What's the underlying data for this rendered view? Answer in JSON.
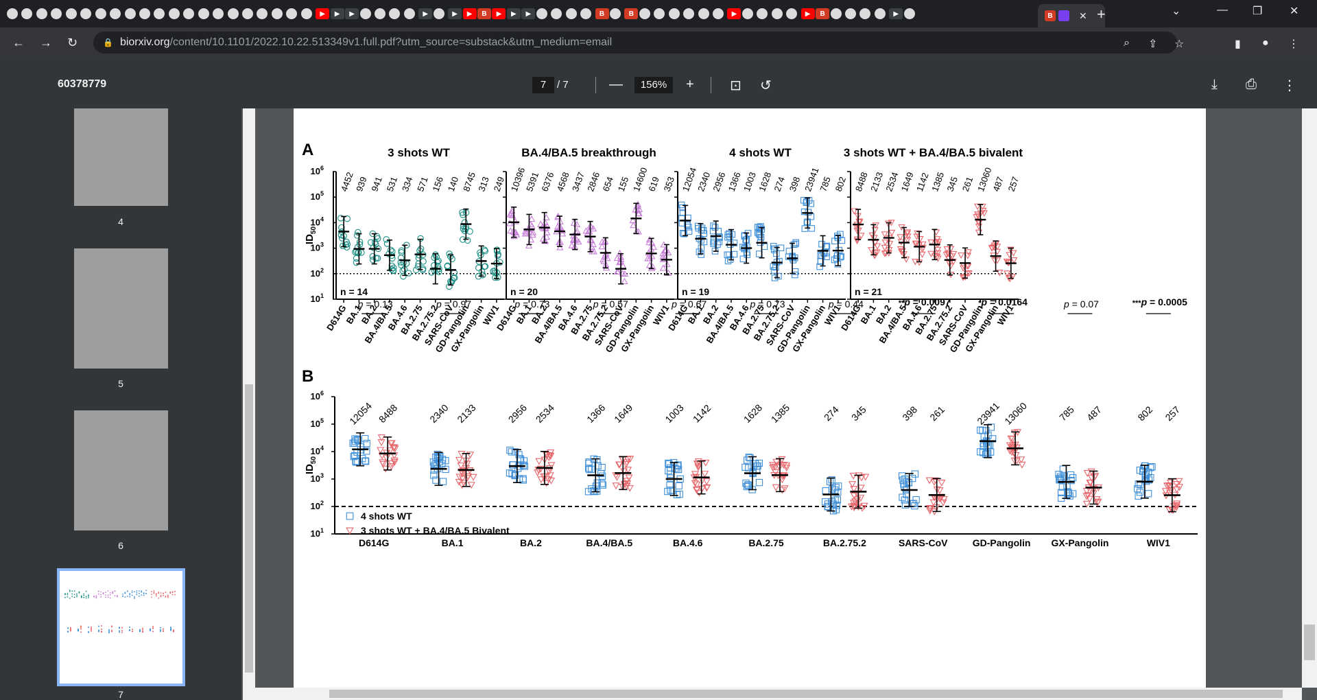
{
  "browser": {
    "active_tab_close": "✕",
    "new_tab": "+",
    "url_host": "biorxiv.org",
    "url_path": "/content/10.1101/2022.10.22.513349v1.full.pdf?utm_source=substack&utm_medium=email"
  },
  "pdf_toolbar": {
    "doc_title": "60378779",
    "current_page": "7",
    "total_pages": "/ 7",
    "zoom": "156%"
  },
  "sidebar": {
    "thumbnails": [
      {
        "label": "4"
      },
      {
        "label": "5"
      },
      {
        "label": "6"
      },
      {
        "label": "7",
        "active": true
      }
    ]
  },
  "figure": {
    "panel_a_label": "A",
    "panel_b_label": "B",
    "y_axis_label": "ID50",
    "y_ticks": [
      "10^6",
      "10^5",
      "10^4",
      "10^3",
      "10^2",
      "10^1"
    ],
    "variants": [
      "D614G",
      "BA.1",
      "BA.2",
      "BA.4/BA.5",
      "BA.4.6",
      "BA.2.75",
      "BA.2.75.2",
      "SARS-CoV",
      "GD-Pangolin",
      "GX-Pangolin",
      "WIV1"
    ],
    "panels_a": [
      {
        "title": "3 shots WT",
        "n": "n = 14",
        "color": "#1a8f84",
        "marker": "circle",
        "values": [
          4452,
          939,
          941,
          531,
          334,
          571,
          156,
          140,
          8745,
          313,
          249
        ]
      },
      {
        "title": "BA.4/BA.5 breakthrough",
        "n": "n = 20",
        "color": "#c77fd9",
        "marker": "triangle-up",
        "values": [
          10396,
          5391,
          6376,
          4568,
          3437,
          2846,
          654,
          155,
          14600,
          619,
          353
        ]
      },
      {
        "title": "4 shots WT",
        "n": "n = 19",
        "color": "#3f8fd8",
        "marker": "square",
        "values": [
          12054,
          2340,
          2956,
          1366,
          1003,
          1628,
          274,
          398,
          23941,
          785,
          802
        ]
      },
      {
        "title": "3 shots WT + BA.4/BA.5 bivalent",
        "n": "n = 21",
        "color": "#e8676c",
        "marker": "triangle-down",
        "values": [
          8488,
          2133,
          2534,
          1649,
          1142,
          1385,
          345,
          261,
          13060,
          487,
          257
        ]
      }
    ],
    "panel_b": {
      "pvalues": [
        {
          "prefix": "",
          "text": "p = 0.13",
          "bold": false
        },
        {
          "prefix": "",
          "text": "p = 0.97",
          "bold": false
        },
        {
          "prefix": "",
          "text": "p = 0.73",
          "bold": false
        },
        {
          "prefix": "",
          "text": "p = 0.57",
          "bold": false
        },
        {
          "prefix": "",
          "text": "p = 0.67",
          "bold": false
        },
        {
          "prefix": "",
          "text": "p = 0.73",
          "bold": false
        },
        {
          "prefix": "",
          "text": "p = 0.44",
          "bold": false
        },
        {
          "prefix": "**",
          "text": "p = 0.0097",
          "bold": true
        },
        {
          "prefix": "*",
          "text": "p = 0.0164",
          "bold": true
        },
        {
          "prefix": "",
          "text": "p = 0.07",
          "bold": false
        },
        {
          "prefix": "***",
          "text": "p = 0.0005",
          "bold": true
        }
      ],
      "legend": [
        {
          "label": "4 shots WT",
          "color": "#3f8fd8",
          "marker": "square"
        },
        {
          "label": "3 shots WT + BA.4/BA.5 Bivalent",
          "color": "#e8676c",
          "marker": "triangle-down"
        }
      ]
    }
  },
  "chart_data": {
    "type": "scatter",
    "title": "",
    "ylabel": "ID50",
    "yscale": "log",
    "ylim": [
      10,
      1000000
    ],
    "detection_limit": 100,
    "categories": [
      "D614G",
      "BA.1",
      "BA.2",
      "BA.4/BA.5",
      "BA.4.6",
      "BA.2.75",
      "BA.2.75.2",
      "SARS-CoV",
      "GD-Pangolin",
      "GX-Pangolin",
      "WIV1"
    ],
    "series": [
      {
        "name": "3 shots WT",
        "values": [
          4452,
          939,
          941,
          531,
          334,
          571,
          156,
          140,
          8745,
          313,
          249
        ]
      },
      {
        "name": "BA.4/BA.5 breakthrough",
        "values": [
          10396,
          5391,
          6376,
          4568,
          3437,
          2846,
          654,
          155,
          14600,
          619,
          353
        ]
      },
      {
        "name": "4 shots WT",
        "values": [
          12054,
          2340,
          2956,
          1366,
          1003,
          1628,
          274,
          398,
          23941,
          785,
          802
        ]
      },
      {
        "name": "3 shots WT + BA.4/BA.5 bivalent",
        "values": [
          8488,
          2133,
          2534,
          1649,
          1142,
          1385,
          345,
          261,
          13060,
          487,
          257
        ]
      }
    ]
  }
}
